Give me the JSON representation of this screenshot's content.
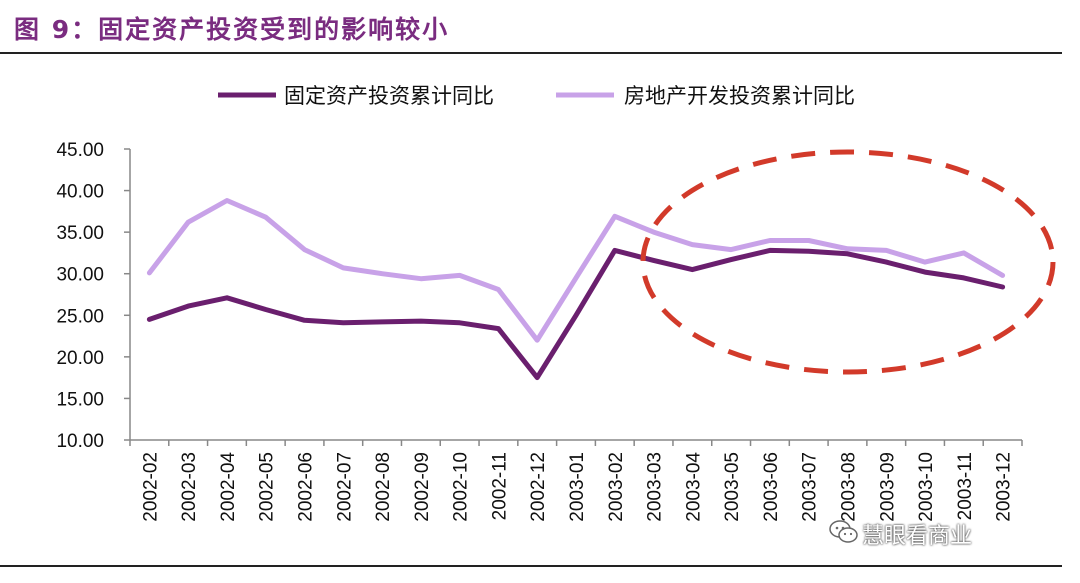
{
  "figure": {
    "title": "图 9：固定资产投资受到的影响较小",
    "watermark": "慧眼看商业"
  },
  "colors": {
    "title": "#7a2c80",
    "series1": "#6a1f6e",
    "series2": "#c8a2e8",
    "ellipse": "#d23a2a"
  },
  "chart_data": {
    "type": "line",
    "categories": [
      "2002-02",
      "2002-03",
      "2002-04",
      "2002-05",
      "2002-06",
      "2002-07",
      "2002-08",
      "2002-09",
      "2002-10",
      "2002-11",
      "2002-12",
      "2003-01",
      "2003-02",
      "2003-03",
      "2003-04",
      "2003-05",
      "2003-06",
      "2003-07",
      "2003-08",
      "2003-09",
      "2003-10",
      "2003-11",
      "2003-12"
    ],
    "ylim": [
      10,
      45
    ],
    "yticks": [
      "10.00",
      "15.00",
      "20.00",
      "25.00",
      "30.00",
      "35.00",
      "40.00",
      "45.00"
    ],
    "legend_position": "top",
    "series": [
      {
        "name": "固定资产投资累计同比",
        "values": [
          24.5,
          26.1,
          27.1,
          25.7,
          24.4,
          24.1,
          24.2,
          24.3,
          24.1,
          23.4,
          17.5,
          25.0,
          32.8,
          31.6,
          30.5,
          31.7,
          32.8,
          32.7,
          32.4,
          31.4,
          30.2,
          29.5,
          28.4
        ]
      },
      {
        "name": "房地产开发投资累计同比",
        "values": [
          30.1,
          36.2,
          38.8,
          36.8,
          32.9,
          30.7,
          30.0,
          29.4,
          29.8,
          28.1,
          22.0,
          29.5,
          36.9,
          35.0,
          33.5,
          32.9,
          34.0,
          34.0,
          33.0,
          32.8,
          31.4,
          32.5,
          29.8
        ]
      }
    ],
    "annotation": "dashed-ellipse"
  }
}
